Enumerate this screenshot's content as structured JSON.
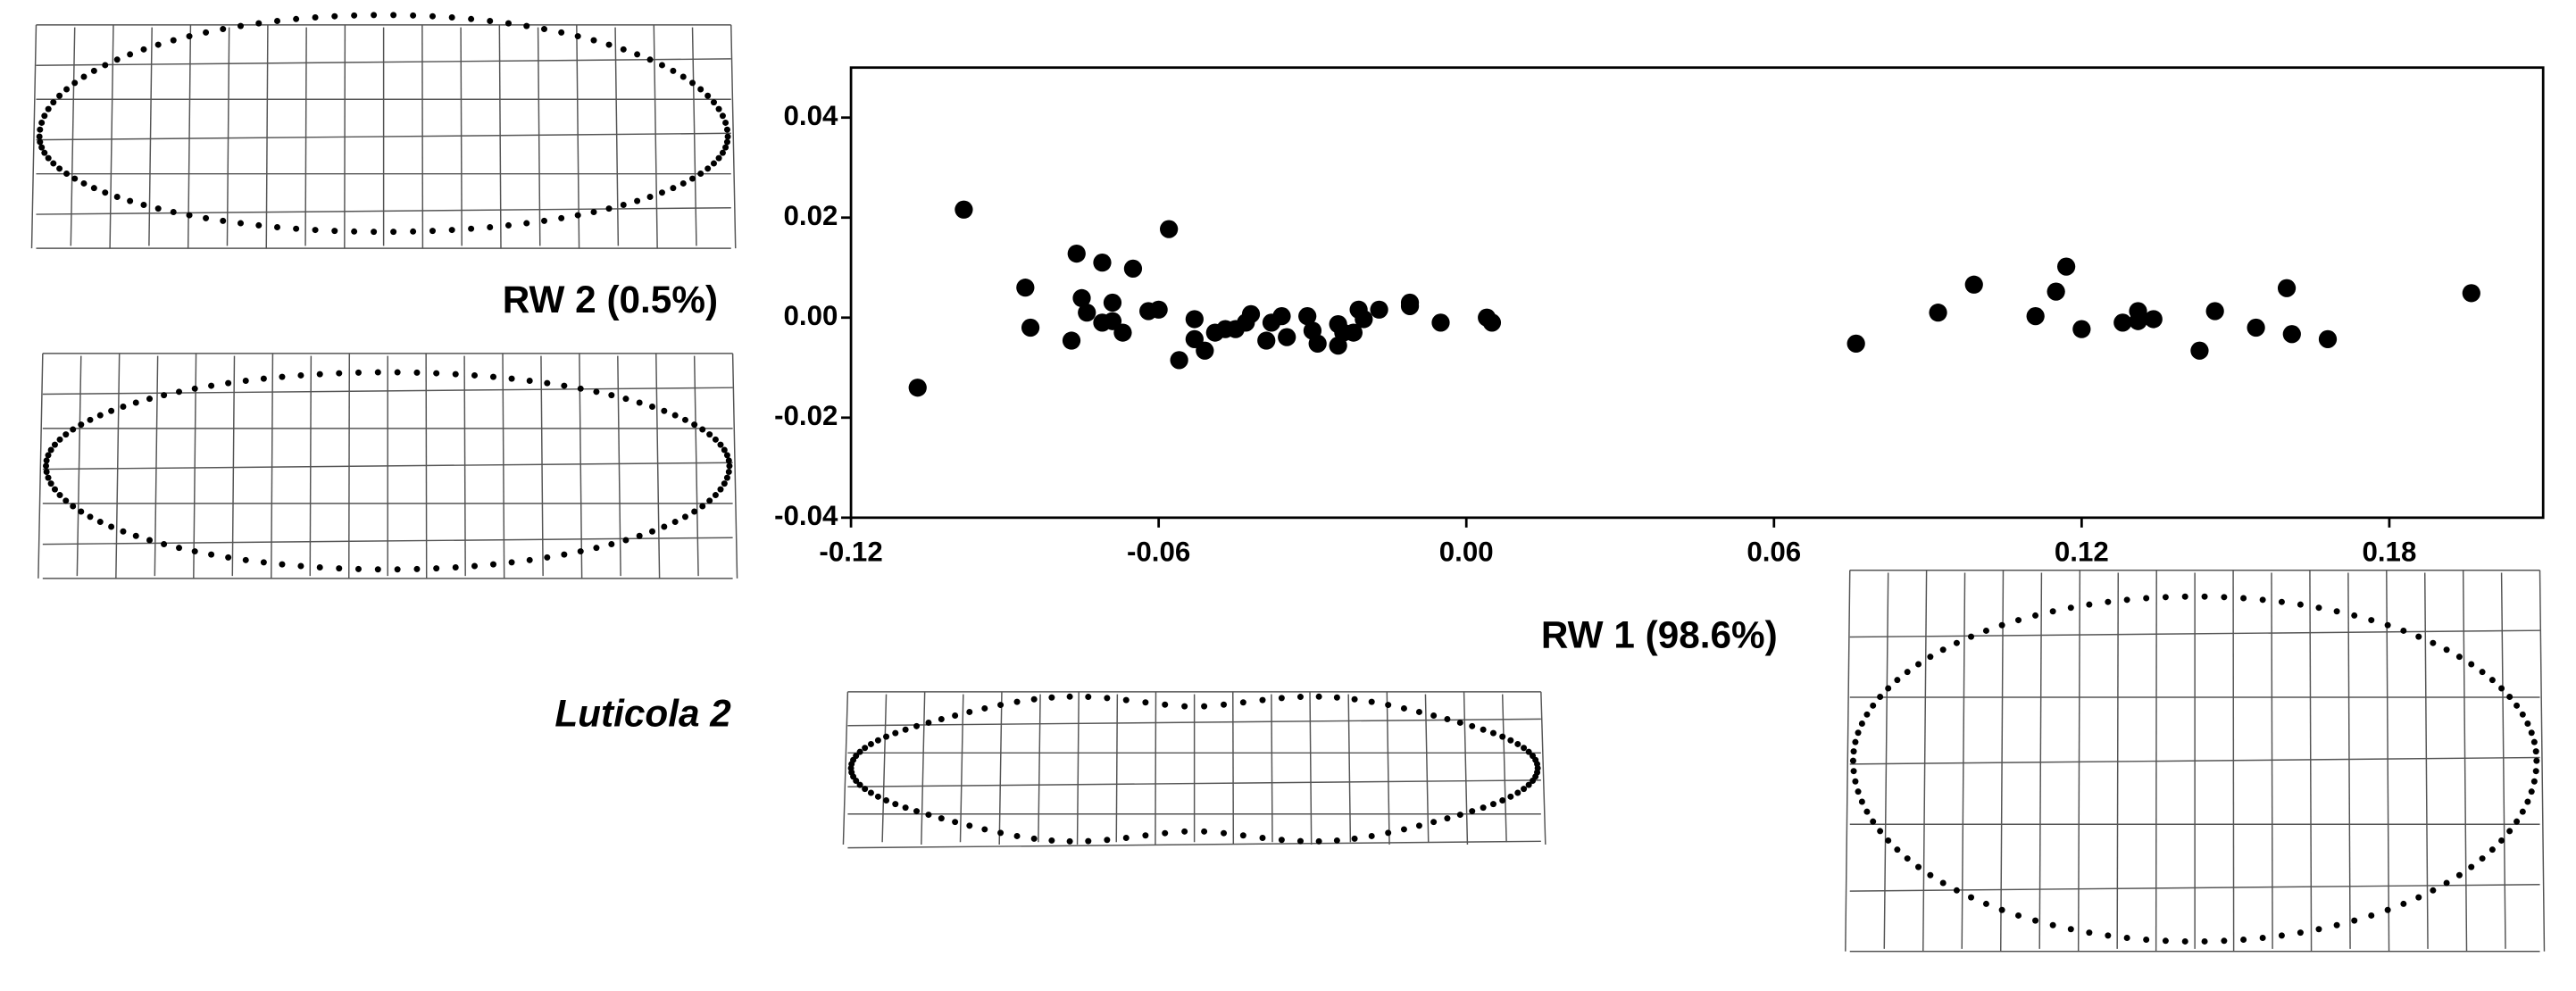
{
  "chart_data": {
    "type": "scatter",
    "x_label": "RW 1 (98.6%)",
    "y_label": "RW 2 (0.5%)",
    "group_label": "Luticola 2",
    "xlim": [
      -0.12,
      0.21
    ],
    "ylim": [
      -0.04,
      0.05
    ],
    "xticks": [
      -0.12,
      -0.06,
      {
        "value": 0,
        "label": "0.00"
      },
      0.06,
      0.12,
      0.18
    ],
    "yticks": [
      -0.04,
      -0.02,
      {
        "value": 0,
        "label": "0.00"
      },
      0.02,
      0.04
    ],
    "color": "#000000",
    "x": [
      -0.107,
      -0.098,
      -0.086,
      -0.085,
      -0.077,
      -0.076,
      -0.075,
      -0.074,
      -0.071,
      -0.071,
      -0.069,
      -0.069,
      -0.067,
      -0.065,
      -0.062,
      -0.06,
      -0.058,
      -0.056,
      -0.053,
      -0.053,
      -0.051,
      -0.049,
      -0.047,
      -0.045,
      -0.043,
      -0.042,
      -0.039,
      -0.038,
      -0.036,
      -0.035,
      -0.031,
      -0.03,
      -0.029,
      -0.025,
      -0.025,
      -0.024,
      -0.022,
      -0.021,
      -0.02,
      -0.017,
      -0.011,
      -0.011,
      -0.005,
      0.004,
      0.005,
      0.076,
      0.092,
      0.099,
      0.111,
      0.115,
      0.117,
      0.12,
      0.128,
      0.131,
      0.131,
      0.134,
      0.143,
      0.146,
      0.154,
      0.16,
      0.161,
      0.168,
      0.196
    ],
    "values": [
      -0.014,
      0.0216,
      0.006,
      -0.002,
      -0.0046,
      0.0128,
      0.0039,
      0.001,
      -0.001,
      0.011,
      0.003,
      -0.0007,
      -0.003,
      0.0098,
      0.0013,
      0.0016,
      0.0177,
      -0.0085,
      -0.0003,
      -0.0043,
      -0.0066,
      -0.003,
      -0.0023,
      -0.0023,
      -0.001,
      0.0007,
      -0.0046,
      -0.001,
      0.0003,
      -0.0039,
      0.0003,
      -0.0026,
      -0.0052,
      -0.0013,
      -0.0056,
      -0.003,
      -0.003,
      0.0016,
      -0.0003,
      0.0016,
      0.003,
      0.0023,
      -0.001,
      0.0,
      -0.001,
      -0.0052,
      0.001,
      0.0066,
      0.0003,
      0.0052,
      0.0102,
      -0.0023,
      -0.001,
      0.0013,
      -0.0007,
      -0.0003,
      -0.0066,
      0.0013,
      -0.002,
      0.0059,
      -0.0033,
      -0.0043,
      0.0049
    ]
  }
}
